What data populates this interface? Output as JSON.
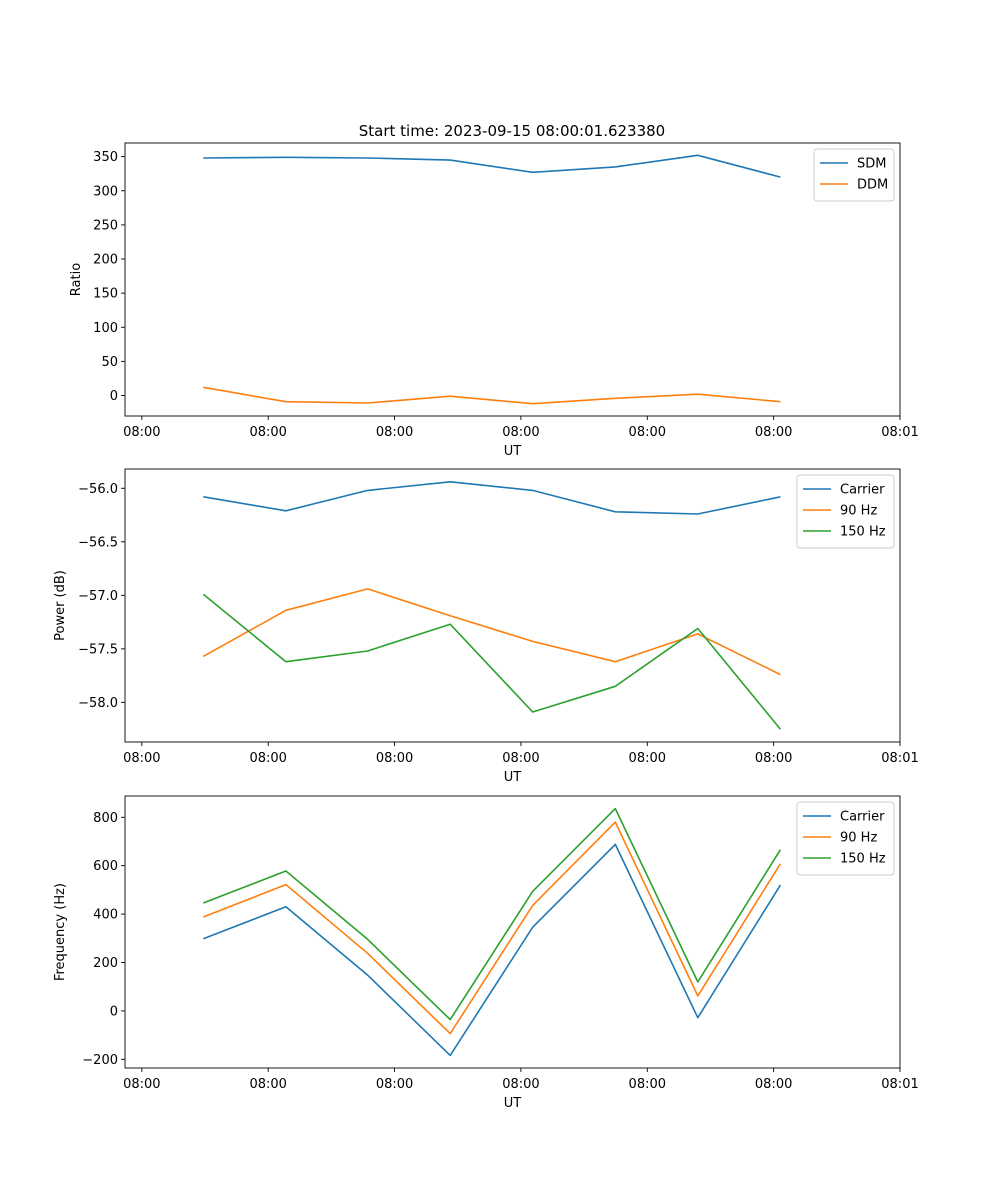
{
  "figure": {
    "title": "Start time: 2023-09-15 08:00:01.623380"
  },
  "chart_data": [
    {
      "type": "line",
      "xlabel": "UT",
      "ylabel": "Ratio",
      "ylim": [
        -30,
        370
      ],
      "xlim": [
        -0.2,
        9.0
      ],
      "x_ticks": [
        0,
        1.5,
        3,
        4.5,
        6,
        7.5,
        9
      ],
      "x_tick_labels": [
        "08:00",
        "08:00",
        "08:00",
        "08:00",
        "08:00",
        "08:00",
        "08:01"
      ],
      "y_ticks": [
        0,
        50,
        100,
        150,
        200,
        250,
        300,
        350
      ],
      "y_tick_labels": [
        "0",
        "50",
        "100",
        "150",
        "200",
        "250",
        "300",
        "350"
      ],
      "legend_position": "top-right",
      "x": [
        0.73,
        1.71,
        2.68,
        3.66,
        4.64,
        5.62,
        6.6,
        7.58
      ],
      "series": [
        {
          "name": "SDM",
          "color": "#1f77b4",
          "values": [
            348,
            349,
            348,
            345,
            327,
            335,
            352,
            320
          ]
        },
        {
          "name": "DDM",
          "color": "#ff7f0e",
          "values": [
            12,
            -9,
            -11,
            -1,
            -12,
            -4,
            2,
            -9
          ]
        }
      ]
    },
    {
      "type": "line",
      "xlabel": "UT",
      "ylabel": "Power (dB)",
      "ylim": [
        -58.37,
        -55.82
      ],
      "xlim": [
        -0.2,
        9.0
      ],
      "x_ticks": [
        0,
        1.5,
        3,
        4.5,
        6,
        7.5,
        9
      ],
      "x_tick_labels": [
        "08:00",
        "08:00",
        "08:00",
        "08:00",
        "08:00",
        "08:00",
        "08:01"
      ],
      "y_ticks": [
        -56.0,
        -56.5,
        -57.0,
        -57.5,
        -58.0
      ],
      "y_tick_labels": [
        "−56.0",
        "−56.5",
        "−57.0",
        "−57.5",
        "−58.0"
      ],
      "legend_position": "top-right",
      "x": [
        0.73,
        1.71,
        2.68,
        3.66,
        4.64,
        5.62,
        6.6,
        7.58
      ],
      "series": [
        {
          "name": "Carrier",
          "color": "#1f77b4",
          "values": [
            -56.08,
            -56.21,
            -56.02,
            -55.94,
            -56.02,
            -56.22,
            -56.24,
            -56.08
          ]
        },
        {
          "name": "90 Hz",
          "color": "#ff7f0e",
          "values": [
            -57.57,
            -57.14,
            -56.94,
            -57.19,
            -57.43,
            -57.62,
            -57.36,
            -57.74
          ]
        },
        {
          "name": "150 Hz",
          "color": "#2ca02c",
          "values": [
            -56.99,
            -57.62,
            -57.52,
            -57.27,
            -58.09,
            -57.85,
            -57.31,
            -58.25
          ]
        }
      ]
    },
    {
      "type": "line",
      "xlabel": "UT",
      "ylabel": "Frequency (Hz)",
      "ylim": [
        -236,
        888
      ],
      "xlim": [
        -0.2,
        9.0
      ],
      "x_ticks": [
        0,
        1.5,
        3,
        4.5,
        6,
        7.5,
        9
      ],
      "x_tick_labels": [
        "08:00",
        "08:00",
        "08:00",
        "08:00",
        "08:00",
        "08:00",
        "08:01"
      ],
      "y_ticks": [
        -200,
        0,
        200,
        400,
        600,
        800
      ],
      "y_tick_labels": [
        "−200",
        "0",
        "200",
        "400",
        "600",
        "800"
      ],
      "legend_position": "top-right",
      "x": [
        0.73,
        1.71,
        2.68,
        3.66,
        4.64,
        5.62,
        6.6,
        7.58
      ],
      "series": [
        {
          "name": "Carrier",
          "color": "#1f77b4",
          "values": [
            298,
            430,
            148,
            -184,
            346,
            688,
            -28,
            520
          ]
        },
        {
          "name": "90 Hz",
          "color": "#ff7f0e",
          "values": [
            388,
            522,
            238,
            -94,
            436,
            780,
            62,
            608
          ]
        },
        {
          "name": "150 Hz",
          "color": "#2ca02c",
          "values": [
            446,
            578,
            296,
            -36,
            494,
            836,
            120,
            666
          ]
        }
      ]
    }
  ]
}
